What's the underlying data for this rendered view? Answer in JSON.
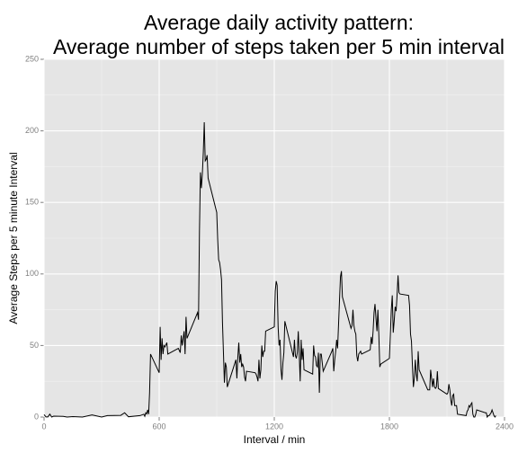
{
  "chart_data": {
    "type": "line",
    "title": [
      "Average daily activity pattern:",
      "Average number of steps taken  per 5 min interval"
    ],
    "x_label": "Interval / min",
    "y_label": "Average Steps per 5 minute Interval",
    "color": "#000000",
    "grid": true,
    "xlim": [
      0,
      2400
    ],
    "xticks": [
      0,
      600,
      1200,
      1800,
      2400
    ],
    "ylim": [
      0,
      250
    ],
    "yticks": [
      0,
      50,
      100,
      150,
      200,
      250
    ],
    "x": [
      0,
      10,
      20,
      30,
      40,
      50,
      100,
      120,
      150,
      200,
      250,
      300,
      330,
      400,
      420,
      440,
      500,
      520,
      525,
      530,
      535,
      540,
      545,
      550,
      555,
      600,
      605,
      610,
      615,
      620,
      625,
      630,
      640,
      645,
      700,
      710,
      715,
      720,
      725,
      730,
      735,
      740,
      745,
      800,
      805,
      810,
      815,
      820,
      825,
      830,
      835,
      840,
      845,
      850,
      855,
      900,
      905,
      910,
      915,
      920,
      925,
      930,
      935,
      940,
      945,
      950,
      955,
      1000,
      1005,
      1010,
      1015,
      1020,
      1025,
      1030,
      1035,
      1040,
      1045,
      1050,
      1055,
      1100,
      1105,
      1110,
      1115,
      1120,
      1125,
      1130,
      1135,
      1140,
      1145,
      1150,
      1155,
      1200,
      1205,
      1210,
      1215,
      1220,
      1225,
      1230,
      1235,
      1240,
      1245,
      1250,
      1255,
      1300,
      1305,
      1310,
      1315,
      1320,
      1325,
      1330,
      1335,
      1340,
      1345,
      1350,
      1355,
      1400,
      1405,
      1410,
      1415,
      1420,
      1425,
      1430,
      1435,
      1440,
      1445,
      1450,
      1455,
      1500,
      1505,
      1510,
      1515,
      1520,
      1525,
      1530,
      1535,
      1540,
      1545,
      1550,
      1555,
      1600,
      1605,
      1610,
      1615,
      1620,
      1625,
      1630,
      1635,
      1640,
      1645,
      1650,
      1655,
      1700,
      1705,
      1710,
      1715,
      1720,
      1725,
      1730,
      1735,
      1740,
      1745,
      1750,
      1755,
      1800,
      1805,
      1810,
      1815,
      1820,
      1825,
      1830,
      1835,
      1840,
      1845,
      1850,
      1855,
      1900,
      1905,
      1910,
      1915,
      1920,
      1925,
      1930,
      1935,
      1940,
      1945,
      1950,
      1955,
      2000,
      2005,
      2010,
      2015,
      2020,
      2025,
      2030,
      2035,
      2040,
      2045,
      2050,
      2055,
      2100,
      2105,
      2110,
      2115,
      2120,
      2125,
      2130,
      2135,
      2140,
      2145,
      2150,
      2155,
      2200,
      2205,
      2210,
      2215,
      2220,
      2225,
      2230,
      2235,
      2240,
      2245,
      2250,
      2255,
      2300,
      2305,
      2310,
      2315,
      2320,
      2325,
      2330,
      2335,
      2340,
      2345,
      2350,
      2355
    ],
    "values": [
      1.7,
      0.1,
      0.1,
      2,
      0,
      0.6,
      0.5,
      0,
      0.3,
      0,
      1.5,
      0,
      1,
      1.2,
      3,
      0.2,
      1,
      2,
      0.5,
      3,
      2.2,
      5,
      2,
      17,
      44,
      31,
      63,
      40,
      55,
      44,
      50,
      49,
      52,
      44,
      48,
      45,
      57,
      50,
      55,
      60,
      44,
      70,
      55,
      73,
      68,
      130,
      171,
      160,
      170,
      185,
      206,
      179,
      180,
      183,
      167,
      143,
      124,
      110,
      108,
      103,
      96,
      66,
      45,
      24,
      38,
      35,
      21,
      40,
      27,
      42,
      52,
      38,
      44,
      35,
      37,
      35,
      28,
      25,
      32,
      31,
      30,
      28,
      25,
      40,
      27,
      33,
      50,
      42,
      46,
      46,
      60,
      63,
      88,
      95,
      92,
      63,
      50,
      54,
      33,
      26,
      38,
      45,
      67,
      42,
      54,
      43,
      41,
      45,
      60,
      44,
      25,
      54,
      40,
      48,
      33,
      30,
      50,
      43,
      42,
      36,
      35,
      45,
      17,
      44,
      44,
      38,
      32,
      46,
      48,
      32,
      40,
      46,
      54,
      48,
      65,
      82,
      98,
      102,
      84,
      62,
      64,
      75,
      64,
      60,
      58,
      43,
      39,
      44,
      45,
      46,
      44,
      47,
      56,
      51,
      60,
      73,
      79,
      69,
      60,
      75,
      57,
      35,
      37,
      41,
      58,
      75,
      85,
      59,
      67,
      77,
      74,
      85,
      99,
      87,
      86,
      85,
      78,
      58,
      53,
      36,
      21,
      27,
      40,
      30,
      25,
      46,
      33,
      19,
      19,
      19,
      33,
      27,
      21,
      27,
      21,
      20,
      21,
      32,
      20,
      16,
      17,
      23,
      19,
      12,
      8,
      15,
      16,
      8,
      8,
      8,
      2,
      1,
      4,
      5,
      8,
      7,
      9,
      10,
      2,
      0,
      0,
      2,
      5,
      3,
      3,
      0,
      1,
      1,
      2,
      3,
      5,
      3,
      1,
      0,
      1
    ]
  }
}
